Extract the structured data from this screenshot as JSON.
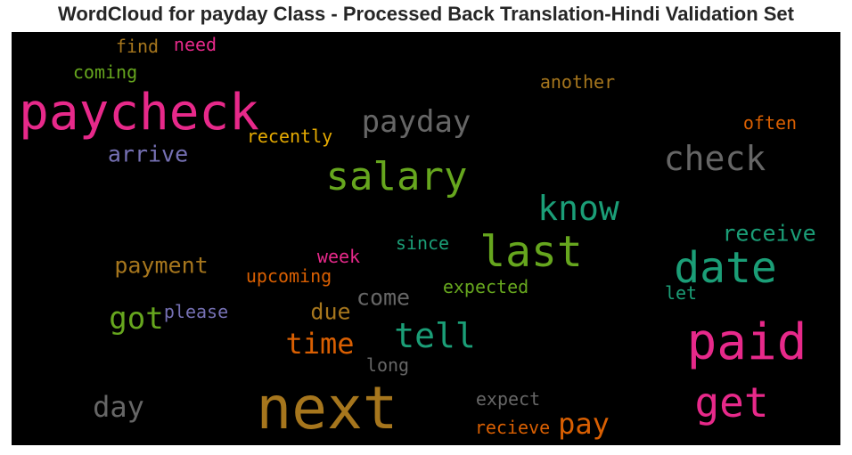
{
  "title": "WordCloud for payday Class - Processed Back Translation-Hindi Validation Set",
  "palette": {
    "teal": "#1b9e77",
    "orange": "#d95f02",
    "purple": "#7570b3",
    "pink": "#e7298a",
    "green": "#66a61e",
    "gold": "#e6ab02",
    "brown": "#a6761d",
    "gray": "#666666"
  },
  "words": [
    {
      "text": "paycheck",
      "color": "#e7298a"
    },
    {
      "text": "next",
      "color": "#a6761d"
    },
    {
      "text": "paid",
      "color": "#e7298a"
    },
    {
      "text": "date",
      "color": "#1b9e77"
    },
    {
      "text": "last",
      "color": "#66a61e"
    },
    {
      "text": "salary",
      "color": "#66a61e"
    },
    {
      "text": "get",
      "color": "#e7298a"
    },
    {
      "text": "check",
      "color": "#666666"
    },
    {
      "text": "know",
      "color": "#1b9e77"
    },
    {
      "text": "tell",
      "color": "#1b9e77"
    },
    {
      "text": "payday",
      "color": "#666666"
    },
    {
      "text": "time",
      "color": "#d95f02"
    },
    {
      "text": "got",
      "color": "#66a61e"
    },
    {
      "text": "day",
      "color": "#666666"
    },
    {
      "text": "pay",
      "color": "#d95f02"
    },
    {
      "text": "payment",
      "color": "#a6761d"
    },
    {
      "text": "arrive",
      "color": "#7570b3"
    },
    {
      "text": "receive",
      "color": "#1b9e77"
    },
    {
      "text": "come",
      "color": "#666666"
    },
    {
      "text": "due",
      "color": "#a6761d"
    },
    {
      "text": "recently",
      "color": "#e6ab02"
    },
    {
      "text": "upcoming",
      "color": "#d95f02"
    },
    {
      "text": "expected",
      "color": "#66a61e"
    },
    {
      "text": "another",
      "color": "#a6761d"
    },
    {
      "text": "often",
      "color": "#d95f02"
    },
    {
      "text": "coming",
      "color": "#66a61e"
    },
    {
      "text": "find",
      "color": "#a6761d"
    },
    {
      "text": "need",
      "color": "#e7298a"
    },
    {
      "text": "since",
      "color": "#1b9e77"
    },
    {
      "text": "week",
      "color": "#e7298a"
    },
    {
      "text": "please",
      "color": "#7570b3"
    },
    {
      "text": "long",
      "color": "#666666"
    },
    {
      "text": "expect",
      "color": "#666666"
    },
    {
      "text": "recieve",
      "color": "#d95f02"
    },
    {
      "text": "let",
      "color": "#1b9e77"
    }
  ]
}
